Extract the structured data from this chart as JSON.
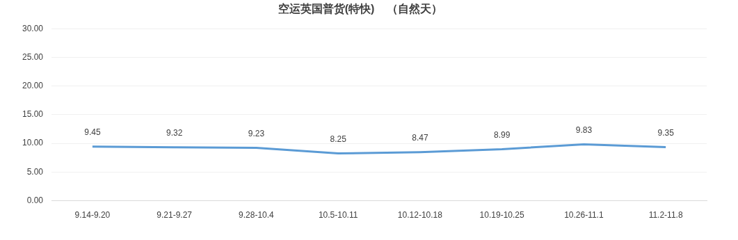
{
  "chart_data": {
    "type": "line",
    "title": "空运英国普货(特快)    （自然天）",
    "categories": [
      "9.14-9.20",
      "9.21-9.27",
      "9.28-10.4",
      "10.5-10.11",
      "10.12-10.18",
      "10.19-10.25",
      "10.26-11.1",
      "11.2-11.8"
    ],
    "series": [
      {
        "color": "#5b9bd5",
        "values": [
          9.45,
          9.32,
          9.23,
          8.25,
          8.47,
          8.99,
          9.83,
          9.35
        ]
      }
    ],
    "ylim": [
      0,
      30
    ],
    "yticks": [
      {
        "value": 0,
        "label": "0.00"
      },
      {
        "value": 5,
        "label": "5.00"
      },
      {
        "value": 10,
        "label": "10.00"
      },
      {
        "value": 15,
        "label": "15.00"
      },
      {
        "value": 20,
        "label": "20.00"
      },
      {
        "value": 25,
        "label": "25.00"
      },
      {
        "value": 30,
        "label": "30.00"
      }
    ],
    "grid": "y",
    "legend": false,
    "marker": "none",
    "line_style": "solid",
    "data_labels": true
  }
}
